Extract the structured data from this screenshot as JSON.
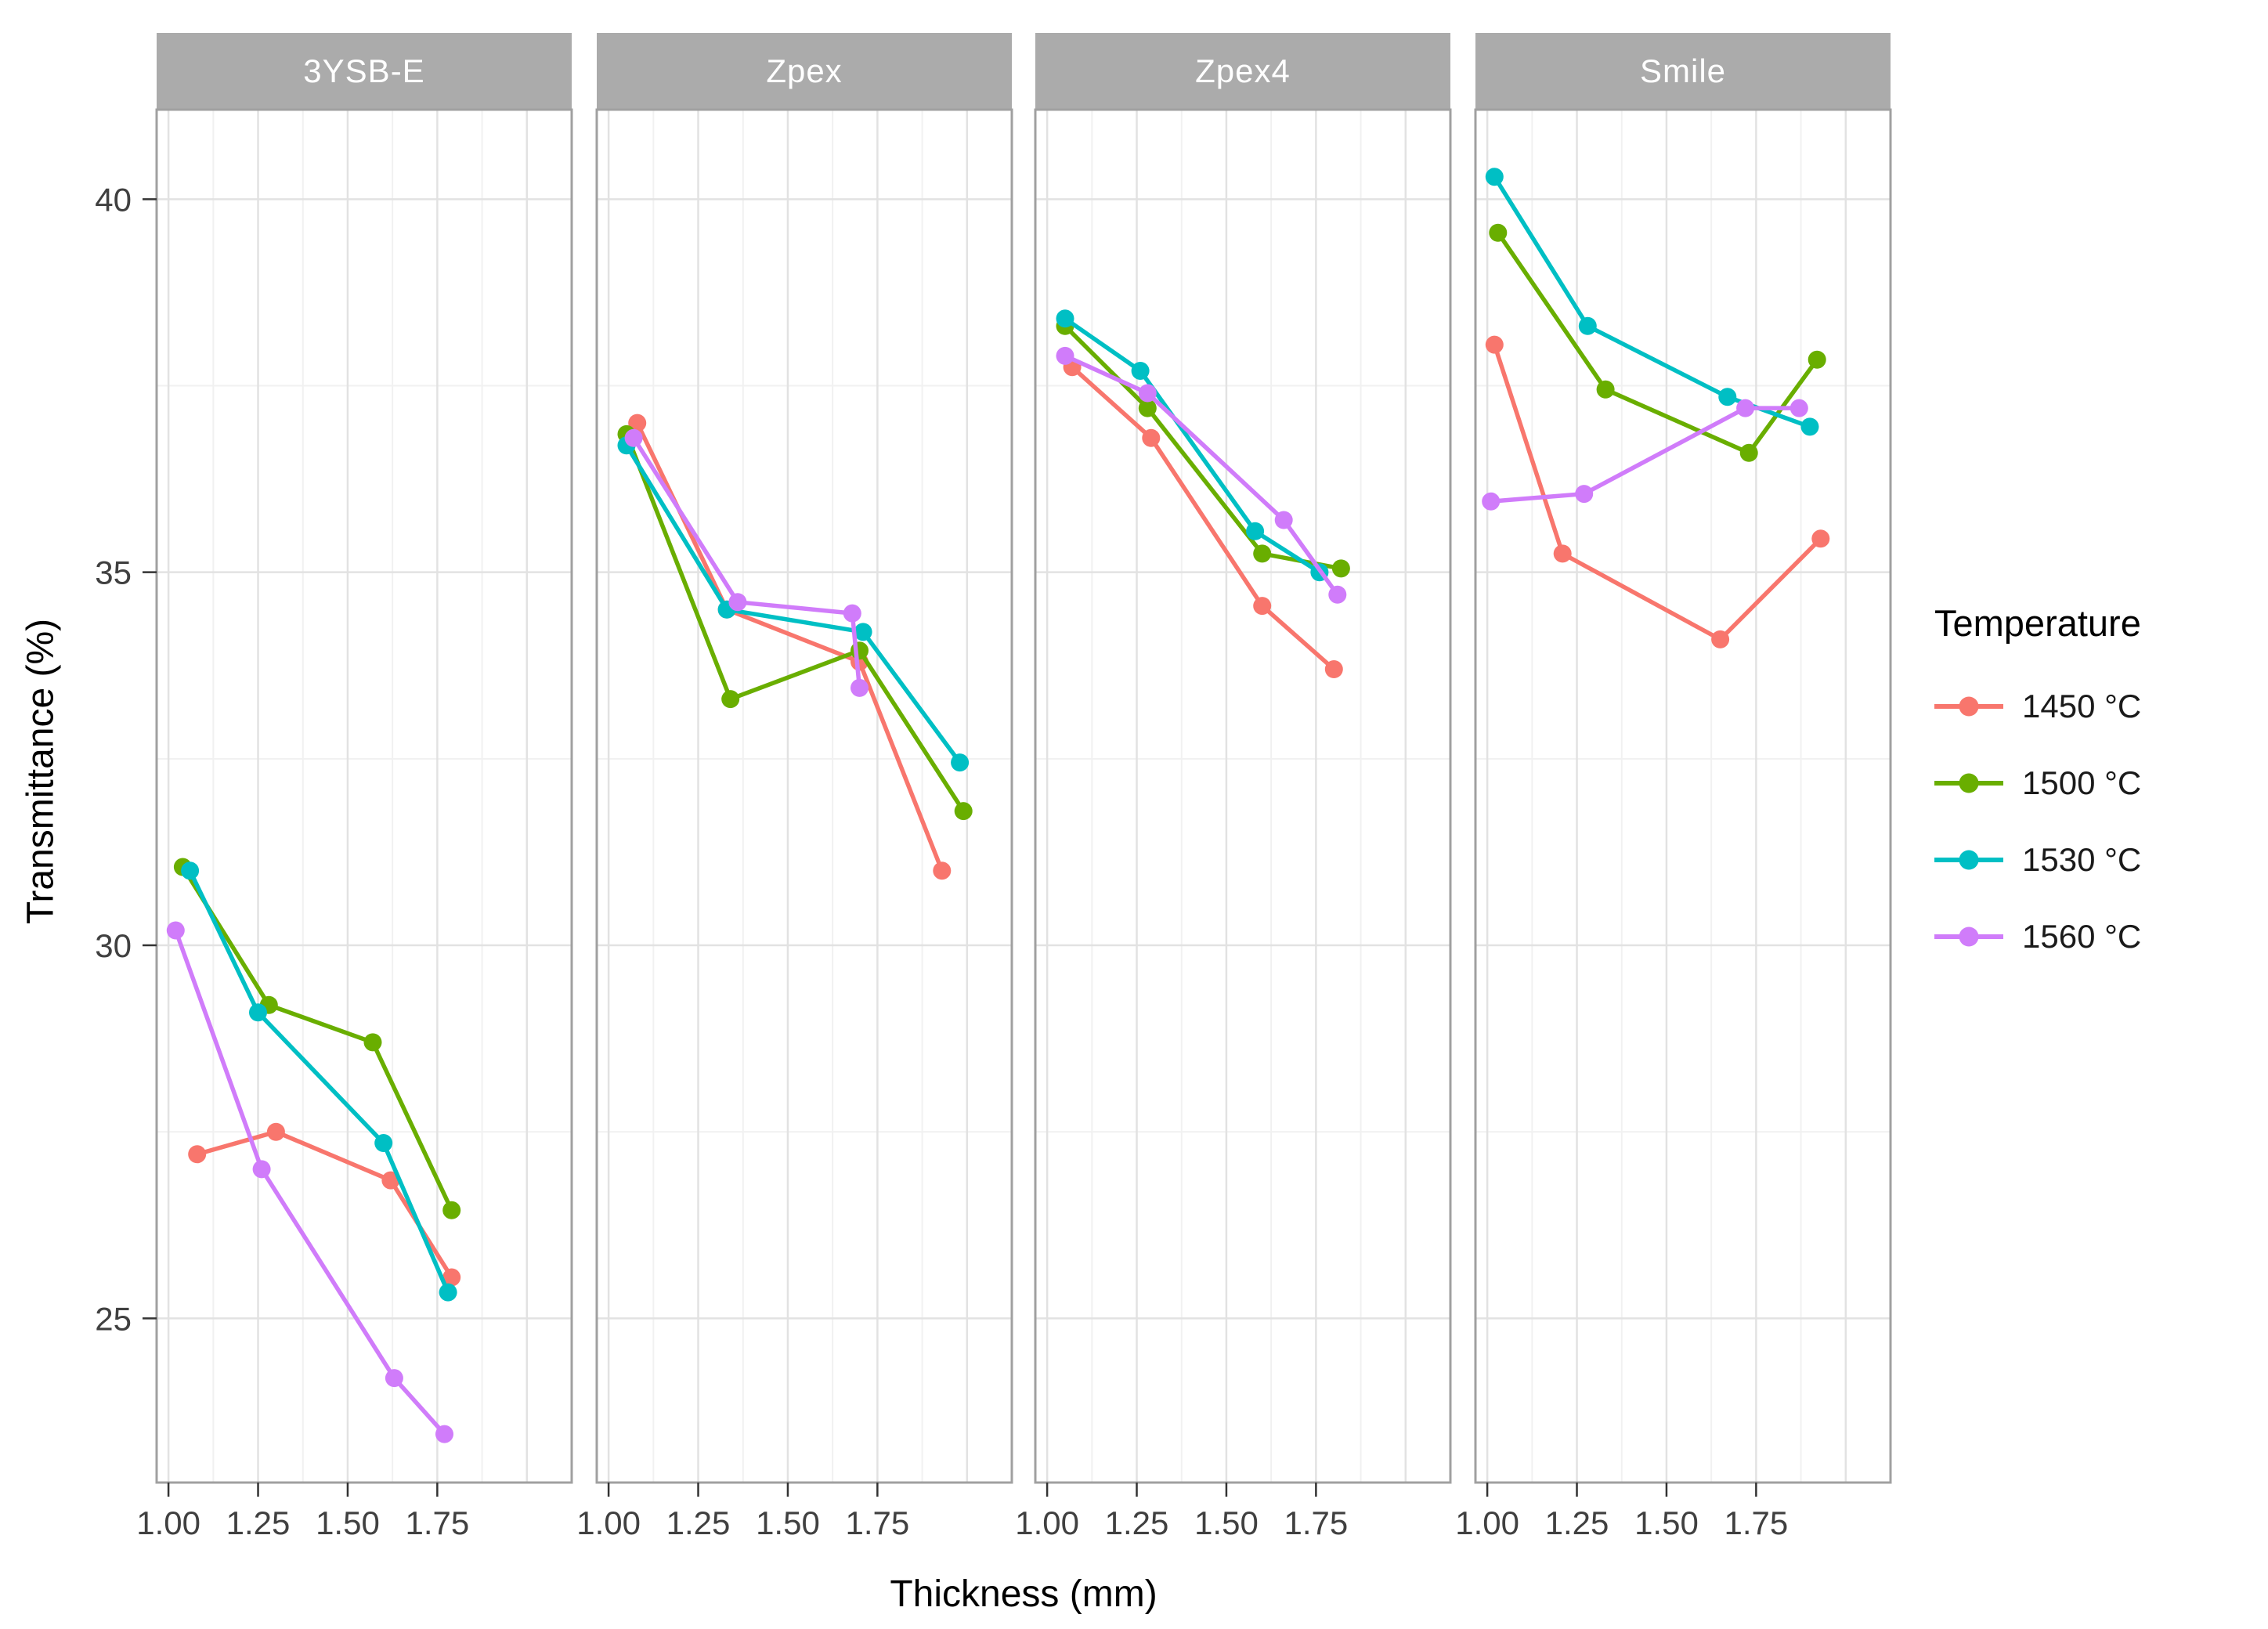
{
  "chart_data": {
    "type": "line",
    "xlabel": "Thickness (mm)",
    "ylabel": "Transmittance (%)",
    "xlim": [
      0.967,
      2.125
    ],
    "ylim": [
      22.8,
      41.2
    ],
    "x_tick_labels": [
      "1.00",
      "1.25",
      "1.50",
      "1.75"
    ],
    "x_tick_values": [
      1.0,
      1.25,
      1.5,
      1.75
    ],
    "x_major_unlabeled": [
      2.0
    ],
    "x_minor": [
      1.125,
      1.375,
      1.625,
      1.875
    ],
    "y_tick_labels": [
      "25",
      "30",
      "35",
      "40"
    ],
    "y_tick_values": [
      25,
      30,
      35,
      40
    ],
    "y_minor": [
      27.5,
      32.5,
      37.5
    ],
    "grid": true,
    "legend": {
      "title": "Temperature",
      "position": "right",
      "entries": [
        "1450 °C",
        "1500 °C",
        "1530 °C",
        "1560 °C"
      ]
    },
    "series_meta": [
      {
        "name": "1450 °C",
        "color": "#F8766D"
      },
      {
        "name": "1500 °C",
        "color": "#69AE00"
      },
      {
        "name": "1530 °C",
        "color": "#00BFC4"
      },
      {
        "name": "1560 °C",
        "color": "#D07CFA"
      }
    ],
    "facets": [
      {
        "label": "3YSB-E",
        "series": [
          {
            "name": "1450 °C",
            "points": [
              [
                1.08,
                27.2
              ],
              [
                1.3,
                27.5
              ],
              [
                1.62,
                26.85
              ],
              [
                1.79,
                25.55
              ]
            ]
          },
          {
            "name": "1500 °C",
            "points": [
              [
                1.04,
                31.05
              ],
              [
                1.28,
                29.2
              ],
              [
                1.57,
                28.7
              ],
              [
                1.79,
                26.45
              ]
            ]
          },
          {
            "name": "1530 °C",
            "points": [
              [
                1.06,
                31.0
              ],
              [
                1.25,
                29.1
              ],
              [
                1.6,
                27.35
              ],
              [
                1.78,
                25.35
              ]
            ]
          },
          {
            "name": "1560 °C",
            "points": [
              [
                1.02,
                30.2
              ],
              [
                1.26,
                27.0
              ],
              [
                1.63,
                24.2
              ],
              [
                1.77,
                23.45
              ]
            ]
          }
        ]
      },
      {
        "label": "Zpex",
        "series": [
          {
            "name": "1450 °C",
            "points": [
              [
                1.08,
                37.0
              ],
              [
                1.33,
                34.5
              ],
              [
                1.7,
                33.8
              ],
              [
                1.93,
                31.0
              ]
            ]
          },
          {
            "name": "1500 °C",
            "points": [
              [
                1.05,
                36.85
              ],
              [
                1.34,
                33.3
              ],
              [
                1.7,
                33.95
              ],
              [
                1.99,
                31.8
              ]
            ]
          },
          {
            "name": "1530 °C",
            "points": [
              [
                1.05,
                36.7
              ],
              [
                1.33,
                34.5
              ],
              [
                1.71,
                34.2
              ],
              [
                1.98,
                32.45
              ]
            ]
          },
          {
            "name": "1560 °C",
            "points": [
              [
                1.07,
                36.8
              ],
              [
                1.36,
                34.6
              ],
              [
                1.68,
                34.45
              ],
              [
                1.7,
                33.45
              ]
            ]
          }
        ]
      },
      {
        "label": "Zpex4",
        "series": [
          {
            "name": "1450 °C",
            "points": [
              [
                1.07,
                37.75
              ],
              [
                1.29,
                36.8
              ],
              [
                1.6,
                34.55
              ],
              [
                1.8,
                33.7
              ]
            ]
          },
          {
            "name": "1500 °C",
            "points": [
              [
                1.05,
                38.3
              ],
              [
                1.28,
                37.2
              ],
              [
                1.6,
                35.25
              ],
              [
                1.82,
                35.05
              ]
            ]
          },
          {
            "name": "1530 °C",
            "points": [
              [
                1.05,
                38.4
              ],
              [
                1.26,
                37.7
              ],
              [
                1.58,
                35.55
              ],
              [
                1.76,
                35.0
              ]
            ]
          },
          {
            "name": "1560 °C",
            "points": [
              [
                1.05,
                37.9
              ],
              [
                1.28,
                37.4
              ],
              [
                1.66,
                35.7
              ],
              [
                1.81,
                34.7
              ]
            ]
          }
        ]
      },
      {
        "label": "Smile",
        "series": [
          {
            "name": "1450 °C",
            "points": [
              [
                1.02,
                38.05
              ],
              [
                1.21,
                35.25
              ],
              [
                1.65,
                34.1
              ],
              [
                1.93,
                35.45
              ]
            ]
          },
          {
            "name": "1500 °C",
            "points": [
              [
                1.03,
                39.55
              ],
              [
                1.33,
                37.45
              ],
              [
                1.73,
                36.6
              ],
              [
                1.92,
                37.85
              ]
            ]
          },
          {
            "name": "1530 °C",
            "points": [
              [
                1.02,
                40.3
              ],
              [
                1.28,
                38.3
              ],
              [
                1.67,
                37.35
              ],
              [
                1.9,
                36.95
              ]
            ]
          },
          {
            "name": "1560 °C",
            "points": [
              [
                1.01,
                35.95
              ],
              [
                1.27,
                36.05
              ],
              [
                1.72,
                37.2
              ],
              [
                1.87,
                37.2
              ]
            ]
          }
        ]
      }
    ],
    "style": {
      "strip_bg": "#ABABAB",
      "strip_text": "#FFFFFF",
      "panel_border": "#A0A0A0",
      "grid_major": "#E2E2E2",
      "grid_minor": "#F1F1F1",
      "tick_color": "#333333",
      "tick_label_color": "#404040"
    }
  }
}
